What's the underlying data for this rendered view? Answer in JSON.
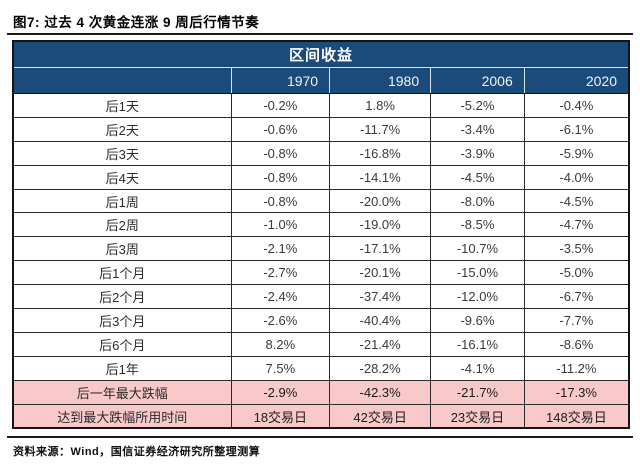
{
  "figure_title": "图7: 过去 4 次黄金连涨 9 周后行情节奏",
  "source_note": "资料来源：Wind，国信证券经济研究所整理测算",
  "colors": {
    "header_blue": "#1B4B7B",
    "highlight_pink": "#F9C9C9",
    "border_dark": "#1a1a1a"
  },
  "chart_data": {
    "type": "table",
    "title": "区间收益",
    "column_headers": [
      "1970",
      "1980",
      "2006",
      "2020"
    ],
    "rows": [
      {
        "label": "后1天",
        "values": [
          "-0.2%",
          "1.8%",
          "-5.2%",
          "-0.4%"
        ]
      },
      {
        "label": "后2天",
        "values": [
          "-0.6%",
          "-11.7%",
          "-3.4%",
          "-6.1%"
        ]
      },
      {
        "label": "后3天",
        "values": [
          "-0.8%",
          "-16.8%",
          "-3.9%",
          "-5.9%"
        ]
      },
      {
        "label": "后4天",
        "values": [
          "-0.8%",
          "-14.1%",
          "-4.5%",
          "-4.0%"
        ]
      },
      {
        "label": "后1周",
        "values": [
          "-0.8%",
          "-20.0%",
          "-8.0%",
          "-4.5%"
        ]
      },
      {
        "label": "后2周",
        "values": [
          "-1.0%",
          "-19.0%",
          "-8.5%",
          "-4.7%"
        ]
      },
      {
        "label": "后3周",
        "values": [
          "-2.1%",
          "-17.1%",
          "-10.7%",
          "-3.5%"
        ]
      },
      {
        "label": "后1个月",
        "values": [
          "-2.7%",
          "-20.1%",
          "-15.0%",
          "-5.0%"
        ]
      },
      {
        "label": "后2个月",
        "values": [
          "-2.4%",
          "-37.4%",
          "-12.0%",
          "-6.7%"
        ]
      },
      {
        "label": "后3个月",
        "values": [
          "-2.6%",
          "-40.4%",
          "-9.6%",
          "-7.7%"
        ]
      },
      {
        "label": "后6个月",
        "values": [
          "8.2%",
          "-21.4%",
          "-16.1%",
          "-8.6%"
        ]
      },
      {
        "label": "后1年",
        "values": [
          "7.5%",
          "-28.2%",
          "-4.1%",
          "-11.2%"
        ]
      },
      {
        "label": "后一年最大跌幅",
        "values": [
          "-2.9%",
          "-42.3%",
          "-21.7%",
          "-17.3%"
        ],
        "highlight": true
      },
      {
        "label": "达到最大跌幅所用时间",
        "values": [
          "18交易日",
          "42交易日",
          "23交易日",
          "148交易日"
        ],
        "highlight": true
      }
    ]
  }
}
